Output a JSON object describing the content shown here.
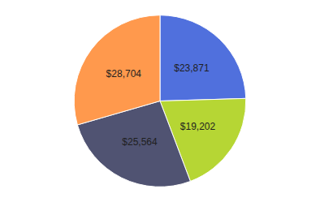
{
  "chart_data": {
    "type": "pie",
    "values": [
      23871,
      19202,
      25564,
      28704
    ],
    "value_labels": [
      "$23,871",
      "$19,202",
      "$25,564",
      "$28,704"
    ],
    "data_labels": true
  }
}
